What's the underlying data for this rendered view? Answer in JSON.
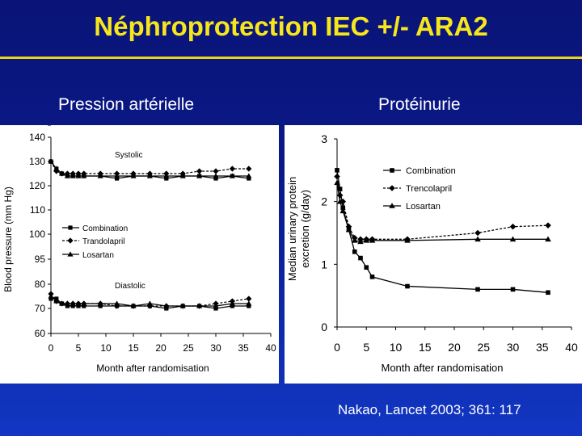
{
  "slide": {
    "title": "Néphroprotection IEC +/- ARA2",
    "left_heading": "Pression artérielle",
    "right_heading": "Protéinurie",
    "reference": "Nakao, Lancet 2003; 361: 117",
    "colors": {
      "title": "#f7e61c",
      "background": "#0b1a8c",
      "text": "#ffffff"
    }
  },
  "chart_data": [
    {
      "type": "line",
      "title": "",
      "xlabel": "Month after randomisation",
      "ylabel": "Blood pressure (mm Hg)",
      "xlim": [
        0,
        40
      ],
      "ylim": [
        60,
        140
      ],
      "x_ticks": [
        0,
        5,
        10,
        15,
        20,
        25,
        30,
        35,
        40
      ],
      "y_ticks": [
        60,
        70,
        80,
        90,
        95,
        100,
        110,
        120,
        130,
        140
      ],
      "y_break": "60-140 axis with broken scale between 80 and 120",
      "legend": [
        "Combination",
        "Trandolapril",
        "Losartan"
      ],
      "legend_position": "middle-left",
      "annotations": [
        "Systolic",
        "Diastolic"
      ],
      "series": [
        {
          "name": "Combination",
          "group": "Systolic",
          "marker": "square",
          "dash": "solid",
          "x": [
            0,
            1,
            2,
            3,
            4,
            5,
            6,
            9,
            12,
            15,
            18,
            21,
            24,
            27,
            30,
            33,
            36
          ],
          "y": [
            130,
            127,
            125,
            124,
            124,
            124,
            124,
            124,
            123,
            124,
            124,
            123,
            124,
            124,
            123,
            124,
            123
          ]
        },
        {
          "name": "Trandolapril",
          "group": "Systolic",
          "marker": "diamond",
          "dash": "dashed",
          "x": [
            0,
            1,
            2,
            3,
            4,
            5,
            6,
            9,
            12,
            15,
            18,
            21,
            24,
            27,
            30,
            33,
            36
          ],
          "y": [
            130,
            126,
            125,
            125,
            125,
            125,
            125,
            125,
            125,
            125,
            125,
            125,
            125,
            126,
            126,
            127,
            127
          ]
        },
        {
          "name": "Losartan",
          "group": "Systolic",
          "marker": "triangle",
          "dash": "solid",
          "x": [
            0,
            1,
            2,
            3,
            4,
            5,
            6,
            9,
            12,
            15,
            18,
            21,
            24,
            27,
            30,
            33,
            36
          ],
          "y": [
            130,
            127,
            125,
            124,
            124,
            124,
            124,
            124,
            124,
            124,
            124,
            124,
            124,
            124,
            124,
            124,
            124
          ]
        },
        {
          "name": "Combination",
          "group": "Diastolic",
          "marker": "square",
          "dash": "solid",
          "x": [
            0,
            1,
            2,
            3,
            4,
            5,
            6,
            9,
            12,
            15,
            18,
            21,
            24,
            27,
            30,
            33,
            36
          ],
          "y": [
            74,
            74,
            72,
            71,
            71,
            71,
            71,
            71,
            71,
            71,
            71,
            70,
            71,
            71,
            70,
            71,
            71
          ]
        },
        {
          "name": "Trandolapril",
          "group": "Diastolic",
          "marker": "diamond",
          "dash": "dashed",
          "x": [
            0,
            1,
            2,
            3,
            4,
            5,
            6,
            9,
            12,
            15,
            18,
            21,
            24,
            27,
            30,
            33,
            36
          ],
          "y": [
            76,
            73,
            72,
            72,
            72,
            72,
            72,
            72,
            71,
            71,
            71,
            71,
            71,
            71,
            72,
            73,
            74
          ]
        },
        {
          "name": "Losartan",
          "group": "Diastolic",
          "marker": "triangle",
          "dash": "solid",
          "x": [
            0,
            1,
            2,
            3,
            4,
            5,
            6,
            9,
            12,
            15,
            18,
            21,
            24,
            27,
            30,
            33,
            36
          ],
          "y": [
            75,
            73,
            72,
            72,
            72,
            72,
            72,
            72,
            72,
            71,
            72,
            71,
            71,
            71,
            71,
            72,
            72
          ]
        }
      ]
    },
    {
      "type": "line",
      "title": "",
      "xlabel": "Month after randomisation",
      "ylabel": "Median urinary protein excretion (g/day)",
      "xlim": [
        0,
        40
      ],
      "ylim": [
        0,
        3
      ],
      "x_ticks": [
        0,
        5,
        10,
        15,
        20,
        25,
        30,
        35,
        40
      ],
      "y_ticks": [
        0,
        1,
        2,
        3
      ],
      "legend": [
        "Combination",
        "Trencolapril",
        "Losartan"
      ],
      "legend_position": "top-right",
      "series": [
        {
          "name": "Combination",
          "marker": "square",
          "dash": "solid",
          "x": [
            0,
            0.5,
            1,
            2,
            3,
            4,
            5,
            6,
            12,
            24,
            30,
            36
          ],
          "y": [
            2.5,
            2.2,
            1.9,
            1.55,
            1.2,
            1.1,
            0.95,
            0.8,
            0.65,
            0.6,
            0.6,
            0.55
          ]
        },
        {
          "name": "Trencolapril",
          "marker": "diamond",
          "dash": "dashed",
          "x": [
            0,
            0.5,
            1,
            2,
            3,
            4,
            5,
            6,
            12,
            24,
            30,
            36
          ],
          "y": [
            2.4,
            2.1,
            2.0,
            1.6,
            1.42,
            1.4,
            1.4,
            1.4,
            1.4,
            1.5,
            1.6,
            1.62
          ]
        },
        {
          "name": "Losartan",
          "marker": "triangle",
          "dash": "solid",
          "x": [
            0,
            0.5,
            1,
            2,
            3,
            4,
            5,
            6,
            12,
            24,
            30,
            36
          ],
          "y": [
            2.3,
            2.0,
            1.85,
            1.55,
            1.38,
            1.36,
            1.38,
            1.38,
            1.38,
            1.4,
            1.4,
            1.4
          ]
        }
      ]
    }
  ]
}
